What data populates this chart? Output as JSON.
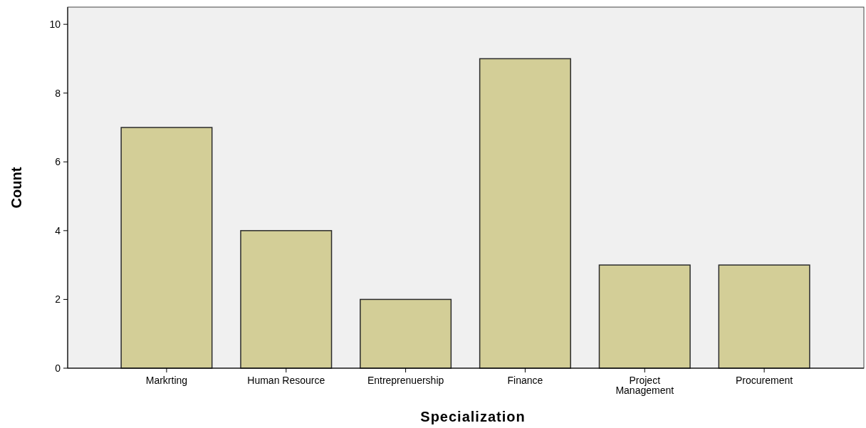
{
  "chart_data": {
    "type": "bar",
    "xlabel": "Specialization",
    "ylabel": "Count",
    "categories": [
      "Markrting",
      "Human Resource",
      "Entreprenuership",
      "Finance",
      "Project Management",
      "Procurement"
    ],
    "values": [
      7,
      4,
      2,
      9,
      3,
      3
    ],
    "color": "#d3ce97",
    "ylim": [
      0,
      10.5
    ],
    "yticks": [
      0,
      2,
      4,
      6,
      8,
      10
    ]
  }
}
